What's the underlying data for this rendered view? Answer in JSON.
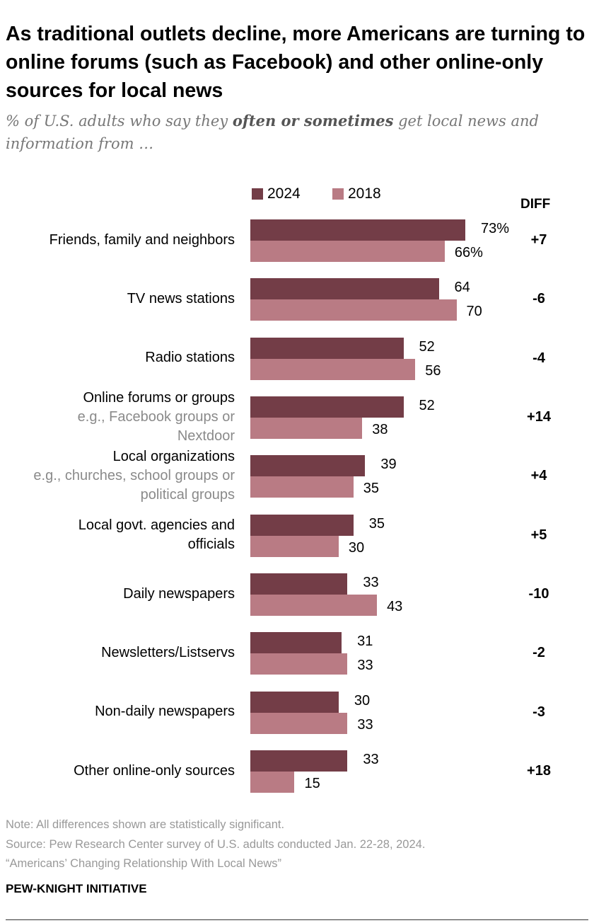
{
  "title": "As traditional outlets decline, more Americans are turning to online forums (such as Facebook) and other online-only sources for local news",
  "subtitle": {
    "pre": "% of U.S. adults who say they ",
    "emph": "often or sometimes",
    "post": " get local news and information from …"
  },
  "colors": {
    "2024": "#733d47",
    "2018": "#b97b84"
  },
  "chart_data": {
    "type": "bar",
    "orientation": "horizontal",
    "xlim": [
      0,
      100
    ],
    "grid": false,
    "legend_placement": "top",
    "diff_header": "DIFF",
    "categories": [
      {
        "label": "Friends, family and neighbors",
        "sub": ""
      },
      {
        "label": "TV news stations",
        "sub": ""
      },
      {
        "label": "Radio stations",
        "sub": ""
      },
      {
        "label": "Online forums or groups",
        "sub": "e.g., Facebook groups or|Nextdoor"
      },
      {
        "label": "Local organizations",
        "sub": "e.g., churches, school groups or|political groups"
      },
      {
        "label": "Local govt. agencies and|officials",
        "sub": ""
      },
      {
        "label": "Daily newspapers",
        "sub": ""
      },
      {
        "label": "Newsletters/Listservs",
        "sub": ""
      },
      {
        "label": "Non-daily newspapers",
        "sub": ""
      },
      {
        "label": "Other online-only sources",
        "sub": ""
      }
    ],
    "series": [
      {
        "name": "2024",
        "values": [
          73,
          64,
          52,
          52,
          39,
          35,
          33,
          31,
          30,
          33
        ],
        "labels": [
          "73%",
          "64",
          "52",
          "52",
          "39",
          "35",
          "33",
          "31",
          "30",
          "33"
        ]
      },
      {
        "name": "2018",
        "values": [
          66,
          70,
          56,
          38,
          35,
          30,
          43,
          33,
          33,
          15
        ],
        "labels": [
          "66%",
          "70",
          "56",
          "38",
          "35",
          "30",
          "43",
          "33",
          "33",
          "15"
        ]
      }
    ],
    "diffs": [
      "+7",
      "-6",
      "-4",
      "+14",
      "+4",
      "+5",
      "-10",
      "-2",
      "-3",
      "+18"
    ]
  },
  "footer": {
    "note": "Note: All differences shown are statistically significant.",
    "source": "Source: Pew Research Center survey of U.S. adults conducted Jan. 22-28, 2024.",
    "report": "“Americans’ Changing Relationship With Local News”",
    "brand": "PEW-KNIGHT INITIATIVE"
  }
}
